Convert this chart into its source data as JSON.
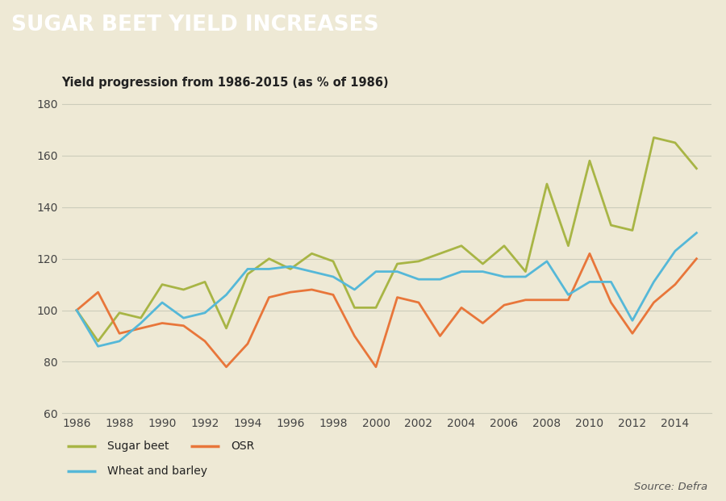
{
  "title": "SUGAR BEET YIELD INCREASES",
  "subtitle": "Yield progression from 1986-2015 (as % of 1986)",
  "header_bg": "#a8b545",
  "chart_bg": "#eee9d5",
  "source_text": "Source: Defra",
  "years": [
    1986,
    1987,
    1988,
    1989,
    1990,
    1991,
    1992,
    1993,
    1994,
    1995,
    1996,
    1997,
    1998,
    1999,
    2000,
    2001,
    2002,
    2003,
    2004,
    2005,
    2006,
    2007,
    2008,
    2009,
    2010,
    2011,
    2012,
    2013,
    2014,
    2015
  ],
  "sugar_beet": [
    100,
    88,
    99,
    97,
    110,
    108,
    111,
    93,
    114,
    120,
    116,
    122,
    119,
    101,
    101,
    118,
    119,
    122,
    125,
    118,
    125,
    115,
    149,
    125,
    158,
    133,
    131,
    167,
    165,
    155
  ],
  "osr": [
    100,
    107,
    91,
    93,
    95,
    94,
    88,
    78,
    87,
    105,
    107,
    108,
    106,
    90,
    78,
    105,
    103,
    90,
    101,
    95,
    102,
    104,
    104,
    104,
    122,
    103,
    91,
    103,
    110,
    120
  ],
  "wheat_barley": [
    100,
    86,
    88,
    95,
    103,
    97,
    99,
    106,
    116,
    116,
    117,
    115,
    113,
    108,
    115,
    115,
    112,
    112,
    115,
    115,
    113,
    113,
    119,
    106,
    111,
    111,
    96,
    111,
    123,
    130
  ],
  "sugar_beet_color": "#a8b545",
  "osr_color": "#e8763a",
  "wheat_barley_color": "#55b8d8",
  "ylim": [
    60,
    185
  ],
  "yticks": [
    60,
    80,
    100,
    120,
    140,
    160,
    180
  ],
  "xticks": [
    1986,
    1988,
    1990,
    1992,
    1994,
    1996,
    1998,
    2000,
    2002,
    2004,
    2006,
    2008,
    2010,
    2012,
    2014
  ],
  "grid_color": "#ccccbb",
  "title_fontsize": 19,
  "subtitle_fontsize": 10.5,
  "axis_fontsize": 10,
  "legend_fontsize": 10,
  "line_width": 2.0
}
